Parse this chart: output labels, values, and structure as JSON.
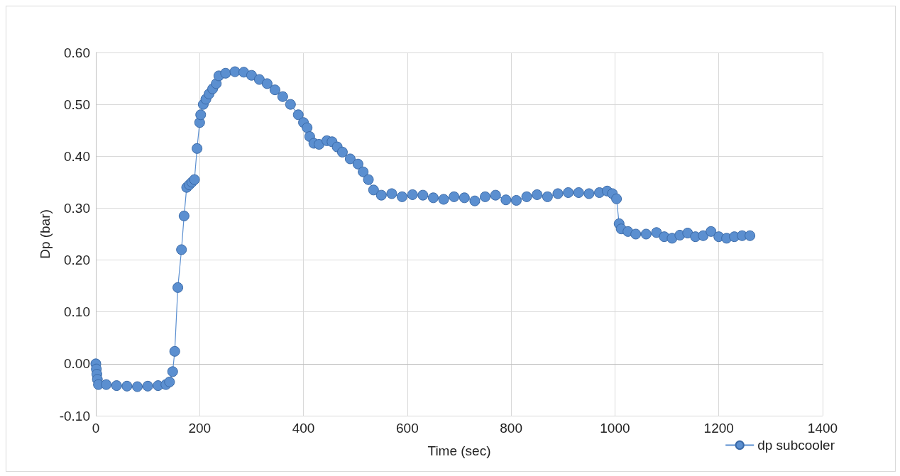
{
  "chart_data": {
    "type": "line",
    "xlabel": "Time (sec)",
    "ylabel": "Dp (bar)",
    "xlim": [
      0,
      1400
    ],
    "ylim": [
      -0.1,
      0.6
    ],
    "xticks": [
      0,
      200,
      400,
      600,
      800,
      1000,
      1200,
      1400
    ],
    "yticks": [
      {
        "value": -0.1,
        "label": "-0.10"
      },
      {
        "value": 0,
        "label": "0.00"
      },
      {
        "value": 0.1,
        "label": "0.10"
      },
      {
        "value": 0.2,
        "label": "0.20"
      },
      {
        "value": 0.3,
        "label": "0.30"
      },
      {
        "value": 0.4,
        "label": "0.40"
      },
      {
        "value": 0.5,
        "label": "0.50"
      },
      {
        "value": 0.6,
        "label": "0.60"
      }
    ],
    "grid": true,
    "legend": "bottom right",
    "marker": "circle",
    "line_style": "solid",
    "series": [
      {
        "name": "dp subcooler",
        "color": "#5b8fd0",
        "x": [
          0,
          1,
          2,
          3,
          5,
          20,
          40,
          60,
          80,
          100,
          120,
          135,
          142,
          148,
          152,
          158,
          165,
          170,
          175,
          180,
          185,
          190,
          195,
          200,
          202,
          207,
          212,
          218,
          225,
          232,
          237,
          250,
          268,
          285,
          300,
          315,
          330,
          345,
          360,
          375,
          390,
          400,
          407,
          412,
          420,
          430,
          445,
          455,
          465,
          475,
          490,
          505,
          515,
          525,
          535,
          550,
          570,
          590,
          610,
          630,
          650,
          670,
          690,
          710,
          730,
          750,
          770,
          790,
          810,
          830,
          850,
          870,
          890,
          910,
          930,
          950,
          970,
          985,
          995,
          1003,
          1008,
          1012,
          1025,
          1040,
          1060,
          1080,
          1095,
          1110,
          1125,
          1140,
          1155,
          1170,
          1185,
          1200,
          1215,
          1230,
          1245,
          1260
        ],
        "values": [
          0.0,
          -0.01,
          -0.02,
          -0.03,
          -0.04,
          -0.04,
          -0.042,
          -0.043,
          -0.044,
          -0.043,
          -0.042,
          -0.04,
          -0.035,
          -0.015,
          0.024,
          0.147,
          0.22,
          0.285,
          0.34,
          0.345,
          0.35,
          0.355,
          0.415,
          0.465,
          0.48,
          0.5,
          0.51,
          0.52,
          0.53,
          0.54,
          0.555,
          0.56,
          0.563,
          0.562,
          0.556,
          0.548,
          0.54,
          0.528,
          0.515,
          0.5,
          0.48,
          0.465,
          0.455,
          0.438,
          0.425,
          0.423,
          0.43,
          0.428,
          0.418,
          0.408,
          0.395,
          0.385,
          0.37,
          0.355,
          0.335,
          0.325,
          0.328,
          0.322,
          0.326,
          0.325,
          0.32,
          0.317,
          0.322,
          0.32,
          0.314,
          0.322,
          0.325,
          0.316,
          0.315,
          0.322,
          0.326,
          0.322,
          0.328,
          0.33,
          0.33,
          0.328,
          0.33,
          0.333,
          0.328,
          0.318,
          0.27,
          0.26,
          0.255,
          0.25,
          0.25,
          0.253,
          0.245,
          0.242,
          0.248,
          0.252,
          0.245,
          0.247,
          0.255,
          0.245,
          0.242,
          0.245,
          0.247,
          0.247
        ]
      }
    ]
  }
}
